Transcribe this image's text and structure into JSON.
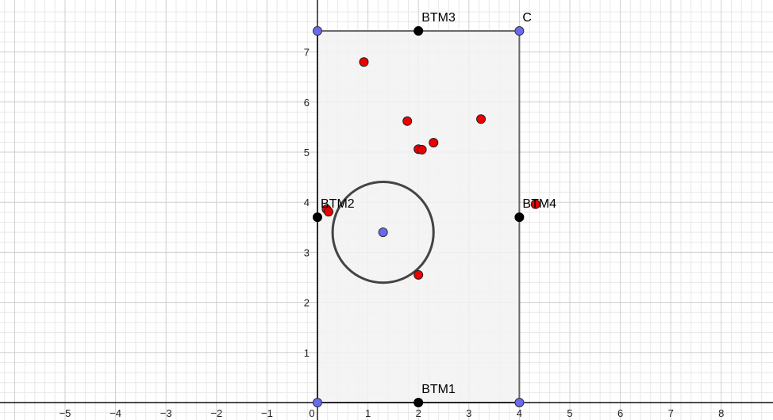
{
  "axes": {
    "x_range": [
      -6.2,
      8.9
    ],
    "y_range": [
      -0.2,
      7.9
    ],
    "x_ticks": [
      "-5",
      "-4",
      "-3",
      "-2",
      "-1",
      "0",
      "1",
      "2",
      "3",
      "4",
      "5",
      "6",
      "7",
      "8"
    ],
    "y_ticks": [
      "1",
      "2",
      "3",
      "4",
      "5",
      "6",
      "7"
    ],
    "grid": true,
    "minor_per_unit": 5
  },
  "rectangle": {
    "x_min": 0,
    "x_max": 4,
    "y_min": 0,
    "y_max": 7.42,
    "fill": "#f2f2f2",
    "stroke": "#666666"
  },
  "corner_points": [
    {
      "x": 0,
      "y": 7.42,
      "label": ""
    },
    {
      "x": 4,
      "y": 7.42,
      "label": "C"
    },
    {
      "x": 0,
      "y": 0,
      "label": ""
    },
    {
      "x": 4,
      "y": 0,
      "label": ""
    }
  ],
  "black_points": [
    {
      "x": 2,
      "y": 7.42,
      "label": "BTM3"
    },
    {
      "x": 0,
      "y": 3.7,
      "label": "BTM2"
    },
    {
      "x": 4,
      "y": 3.7,
      "label": "BTM4"
    },
    {
      "x": 2,
      "y": 0,
      "label": "BTM1"
    }
  ],
  "circle": {
    "cx": 1.3,
    "cy": 3.4,
    "r": 1.0,
    "stroke": "#444444"
  },
  "center_point": {
    "x": 1.3,
    "y": 3.4
  },
  "red_points": [
    {
      "x": 0.92,
      "y": 6.8
    },
    {
      "x": 1.78,
      "y": 5.62
    },
    {
      "x": 3.24,
      "y": 5.66
    },
    {
      "x": 2.3,
      "y": 5.19
    },
    {
      "x": 2.0,
      "y": 5.06
    },
    {
      "x": 2.07,
      "y": 5.05
    },
    {
      "x": 0.18,
      "y": 3.86
    },
    {
      "x": 0.22,
      "y": 3.81
    },
    {
      "x": 4.32,
      "y": 3.96
    },
    {
      "x": 2.0,
      "y": 2.55
    }
  ],
  "colors": {
    "red": "#ee0000",
    "blue": "#6a6aee",
    "black": "#000000",
    "corner_label": "#5b5bf0"
  }
}
